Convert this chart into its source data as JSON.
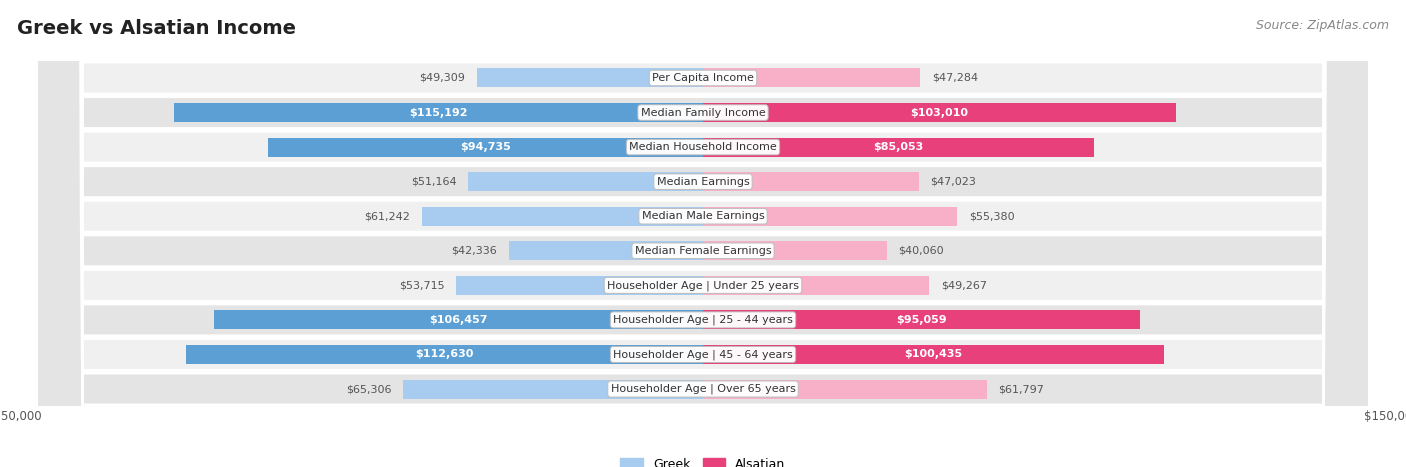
{
  "title": "Greek vs Alsatian Income",
  "source": "Source: ZipAtlas.com",
  "categories": [
    "Per Capita Income",
    "Median Family Income",
    "Median Household Income",
    "Median Earnings",
    "Median Male Earnings",
    "Median Female Earnings",
    "Householder Age | Under 25 years",
    "Householder Age | 25 - 44 years",
    "Householder Age | 45 - 64 years",
    "Householder Age | Over 65 years"
  ],
  "greek_values": [
    49309,
    115192,
    94735,
    51164,
    61242,
    42336,
    53715,
    106457,
    112630,
    65306
  ],
  "alsatian_values": [
    47284,
    103010,
    85053,
    47023,
    55380,
    40060,
    49267,
    95059,
    100435,
    61797
  ],
  "greek_color_low": "#A8CCF0",
  "greek_color_high": "#5B9FD4",
  "alsatian_color_low": "#F8B0C8",
  "alsatian_color_high": "#E8407A",
  "high_threshold": 80000,
  "row_color_light": "#F0F0F0",
  "row_color_dark": "#E4E4E4",
  "max_value": 150000,
  "bar_height": 0.55,
  "background_color": "#FFFFFF",
  "title_fontsize": 14,
  "source_fontsize": 9,
  "label_fontsize": 8,
  "value_fontsize": 8,
  "legend_fontsize": 9,
  "axis_label_fontsize": 8.5
}
